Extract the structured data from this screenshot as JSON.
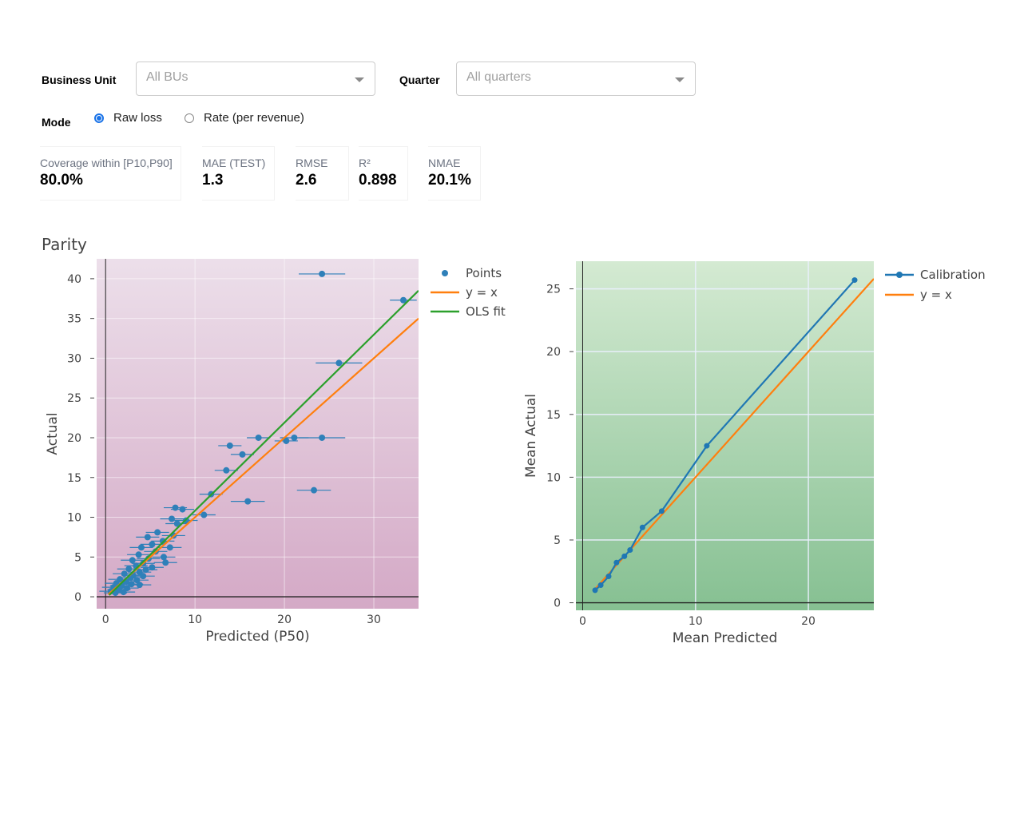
{
  "filters": {
    "business_unit": {
      "label": "Business Unit",
      "placeholder": "All BUs"
    },
    "quarter": {
      "label": "Quarter",
      "placeholder": "All quarters"
    },
    "mode": {
      "label": "Mode",
      "options": [
        "Raw loss",
        "Rate (per revenue)"
      ],
      "selected": "Raw loss"
    }
  },
  "kpis": [
    {
      "label": "Coverage within [P10,P90]",
      "value": "80.0%"
    },
    {
      "label": "MAE (TEST)",
      "value": "1.3"
    },
    {
      "label": "RMSE",
      "value": "2.6"
    },
    {
      "label": "R²",
      "value": "0.898"
    },
    {
      "label": "NMAE",
      "value": "20.1%"
    }
  ],
  "chart_data": [
    {
      "type": "scatter",
      "title": "Parity",
      "xlabel": "Predicted (P50)",
      "ylabel": "Actual",
      "xlim": [
        -1,
        35
      ],
      "ylim": [
        -1.5,
        42.5
      ],
      "xticks": [
        0,
        10,
        20,
        30
      ],
      "yticks": [
        0,
        5,
        10,
        15,
        20,
        25,
        30,
        35,
        40
      ],
      "grid": true,
      "legend_position": "right",
      "colors": {
        "points": "#2f80b9",
        "identity": "#ff7f0e",
        "ols": "#2ca02c",
        "bg_top": "#ecdfea",
        "bg_bottom": "#d4a9c6"
      },
      "series": [
        {
          "name": "Points",
          "mode": "markers+error_x",
          "points": [
            {
              "x": 24.2,
              "y": 40.6,
              "err": 2.6
            },
            {
              "x": 33.3,
              "y": 37.3,
              "err": 1.5
            },
            {
              "x": 26.1,
              "y": 29.4,
              "err": 2.6
            },
            {
              "x": 17.1,
              "y": 20.0,
              "err": 1.3
            },
            {
              "x": 21.1,
              "y": 20.0,
              "err": 1.6
            },
            {
              "x": 24.2,
              "y": 20.0,
              "err": 2.6
            },
            {
              "x": 20.2,
              "y": 19.6,
              "err": 1.3
            },
            {
              "x": 13.9,
              "y": 19.0,
              "err": 1.3
            },
            {
              "x": 15.3,
              "y": 17.9,
              "err": 1.3
            },
            {
              "x": 13.5,
              "y": 15.9,
              "err": 1.3
            },
            {
              "x": 23.3,
              "y": 13.4,
              "err": 1.9
            },
            {
              "x": 11.8,
              "y": 12.9,
              "err": 1.3
            },
            {
              "x": 15.9,
              "y": 12.0,
              "err": 1.9
            },
            {
              "x": 7.8,
              "y": 11.2,
              "err": 1.3
            },
            {
              "x": 8.6,
              "y": 11.0,
              "err": 1.3
            },
            {
              "x": 11.0,
              "y": 10.3,
              "err": 1.3
            },
            {
              "x": 7.4,
              "y": 9.8,
              "err": 1.3
            },
            {
              "x": 9.0,
              "y": 9.6,
              "err": 1.3
            },
            {
              "x": 8.0,
              "y": 9.2,
              "err": 1.3
            },
            {
              "x": 5.8,
              "y": 8.1,
              "err": 1.3
            },
            {
              "x": 7.6,
              "y": 7.7,
              "err": 1.3
            },
            {
              "x": 4.7,
              "y": 7.5,
              "err": 1.3
            },
            {
              "x": 6.4,
              "y": 7.0,
              "err": 1.3
            },
            {
              "x": 5.2,
              "y": 6.6,
              "err": 1.3
            },
            {
              "x": 4.0,
              "y": 6.2,
              "err": 1.3
            },
            {
              "x": 7.2,
              "y": 6.2,
              "err": 1.3
            },
            {
              "x": 5.6,
              "y": 5.7,
              "err": 1.3
            },
            {
              "x": 3.7,
              "y": 5.3,
              "err": 1.3
            },
            {
              "x": 6.5,
              "y": 5.0,
              "err": 1.3
            },
            {
              "x": 4.8,
              "y": 4.8,
              "err": 1.3
            },
            {
              "x": 3.0,
              "y": 4.6,
              "err": 1.3
            },
            {
              "x": 6.7,
              "y": 4.3,
              "err": 1.3
            },
            {
              "x": 4.2,
              "y": 4.2,
              "err": 1.3
            },
            {
              "x": 3.4,
              "y": 3.9,
              "err": 1.3
            },
            {
              "x": 5.2,
              "y": 3.7,
              "err": 1.3
            },
            {
              "x": 2.6,
              "y": 3.5,
              "err": 1.3
            },
            {
              "x": 4.5,
              "y": 3.4,
              "err": 1.3
            },
            {
              "x": 3.8,
              "y": 3.1,
              "err": 1.3
            },
            {
              "x": 2.1,
              "y": 2.9,
              "err": 1.3
            },
            {
              "x": 3.1,
              "y": 2.7,
              "err": 1.3
            },
            {
              "x": 4.2,
              "y": 2.6,
              "err": 1.3
            },
            {
              "x": 2.8,
              "y": 2.4,
              "err": 1.3
            },
            {
              "x": 1.6,
              "y": 2.2,
              "err": 1.3
            },
            {
              "x": 3.5,
              "y": 2.1,
              "err": 1.3
            },
            {
              "x": 2.3,
              "y": 1.9,
              "err": 1.3
            },
            {
              "x": 1.2,
              "y": 1.7,
              "err": 1.3
            },
            {
              "x": 2.9,
              "y": 1.6,
              "err": 1.3
            },
            {
              "x": 1.8,
              "y": 1.4,
              "err": 1.3
            },
            {
              "x": 3.8,
              "y": 1.5,
              "err": 1.3
            },
            {
              "x": 0.9,
              "y": 1.2,
              "err": 1.3
            },
            {
              "x": 2.4,
              "y": 1.1,
              "err": 1.3
            },
            {
              "x": 1.5,
              "y": 0.9,
              "err": 1.3
            },
            {
              "x": 0.6,
              "y": 0.7,
              "err": 1.3
            },
            {
              "x": 2.0,
              "y": 0.6,
              "err": 1.3
            },
            {
              "x": 1.1,
              "y": 0.5,
              "err": 1.3
            }
          ]
        },
        {
          "name": "y = x",
          "mode": "lines",
          "x": [
            0.3,
            35
          ],
          "y": [
            0.3,
            35
          ]
        },
        {
          "name": "OLS fit",
          "mode": "lines",
          "x": [
            0.4,
            35
          ],
          "y": [
            0.2,
            38.5
          ]
        }
      ]
    },
    {
      "type": "line",
      "title": "",
      "xlabel": "Mean Predicted",
      "ylabel": "Mean Actual",
      "xlim": [
        -0.6,
        25.8
      ],
      "ylim": [
        -0.6,
        27.2
      ],
      "xticks": [
        0,
        10,
        20
      ],
      "yticks": [
        0,
        5,
        10,
        15,
        20,
        25
      ],
      "grid": true,
      "legend_position": "right",
      "colors": {
        "calibration": "#1f77b4",
        "identity": "#ff7f0e",
        "bg_top": "#d4ead2",
        "bg_bottom": "#86c092"
      },
      "series": [
        {
          "name": "Calibration",
          "mode": "lines+markers",
          "x": [
            1.1,
            1.6,
            2.3,
            3.0,
            3.7,
            4.2,
            5.3,
            7.0,
            11.0,
            24.1
          ],
          "y": [
            1.0,
            1.4,
            2.1,
            3.2,
            3.7,
            4.2,
            6.0,
            7.3,
            12.5,
            25.7
          ]
        },
        {
          "name": "y = x",
          "mode": "lines",
          "x": [
            1.0,
            25.8
          ],
          "y": [
            1.0,
            25.8
          ]
        }
      ]
    }
  ]
}
